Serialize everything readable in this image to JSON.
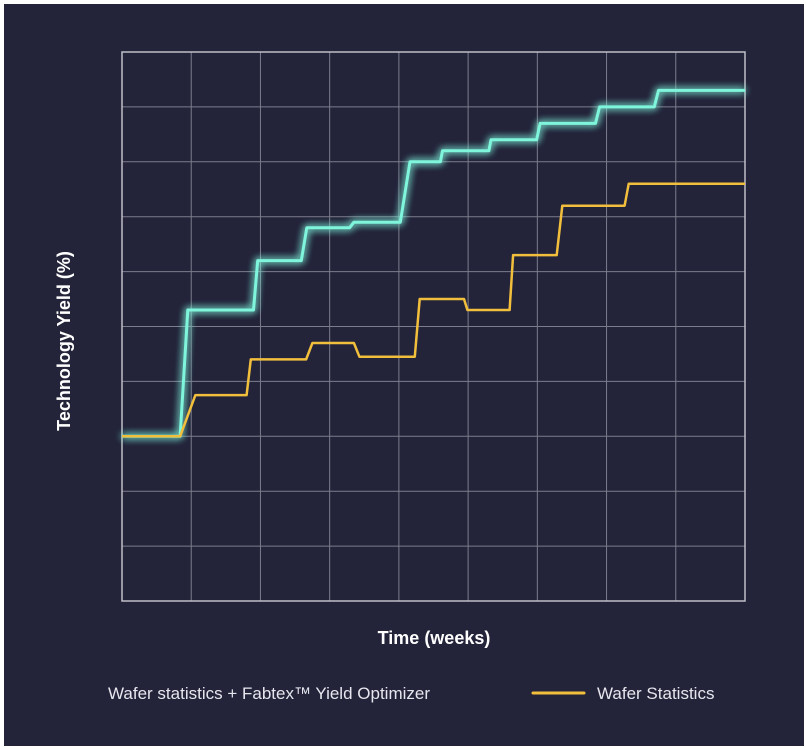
{
  "chart_data": {
    "type": "line",
    "title": "",
    "xlabel": "Time (weeks)",
    "ylabel": "Technology Yield (%)",
    "xlim": [
      0,
      9
    ],
    "ylim": [
      0,
      10
    ],
    "grid": true,
    "legend_position": "bottom",
    "series": [
      {
        "name": "Wafer statistics + Fabtex™ Yield Optimizer",
        "color": "#7ff5dc",
        "glow": true,
        "x": [
          0,
          0.84,
          0.95,
          1.9,
          1.96,
          2.59,
          2.67,
          3.29,
          3.35,
          4.02,
          4.16,
          4.6,
          4.63,
          5.3,
          5.33,
          5.99,
          6.04,
          6.84,
          6.9,
          7.69,
          7.75,
          9.0
        ],
        "y": [
          3.0,
          3.0,
          5.3,
          5.3,
          6.2,
          6.2,
          6.8,
          6.8,
          6.9,
          6.9,
          8.0,
          8.0,
          8.2,
          8.2,
          8.4,
          8.4,
          8.7,
          8.7,
          9.0,
          9.0,
          9.3,
          9.3
        ]
      },
      {
        "name": "Wafer Statistics",
        "color": "#f2bf3c",
        "glow": false,
        "x": [
          0,
          0.84,
          1.06,
          1.8,
          1.86,
          2.66,
          2.75,
          3.35,
          3.43,
          4.23,
          4.3,
          4.94,
          4.99,
          5.6,
          5.65,
          6.28,
          6.36,
          7.26,
          7.32,
          9.0
        ],
        "y": [
          3.0,
          3.0,
          3.75,
          3.75,
          4.4,
          4.4,
          4.7,
          4.7,
          4.45,
          4.45,
          5.5,
          5.5,
          5.3,
          5.3,
          6.3,
          6.3,
          7.2,
          7.2,
          7.6,
          7.6
        ]
      }
    ]
  }
}
